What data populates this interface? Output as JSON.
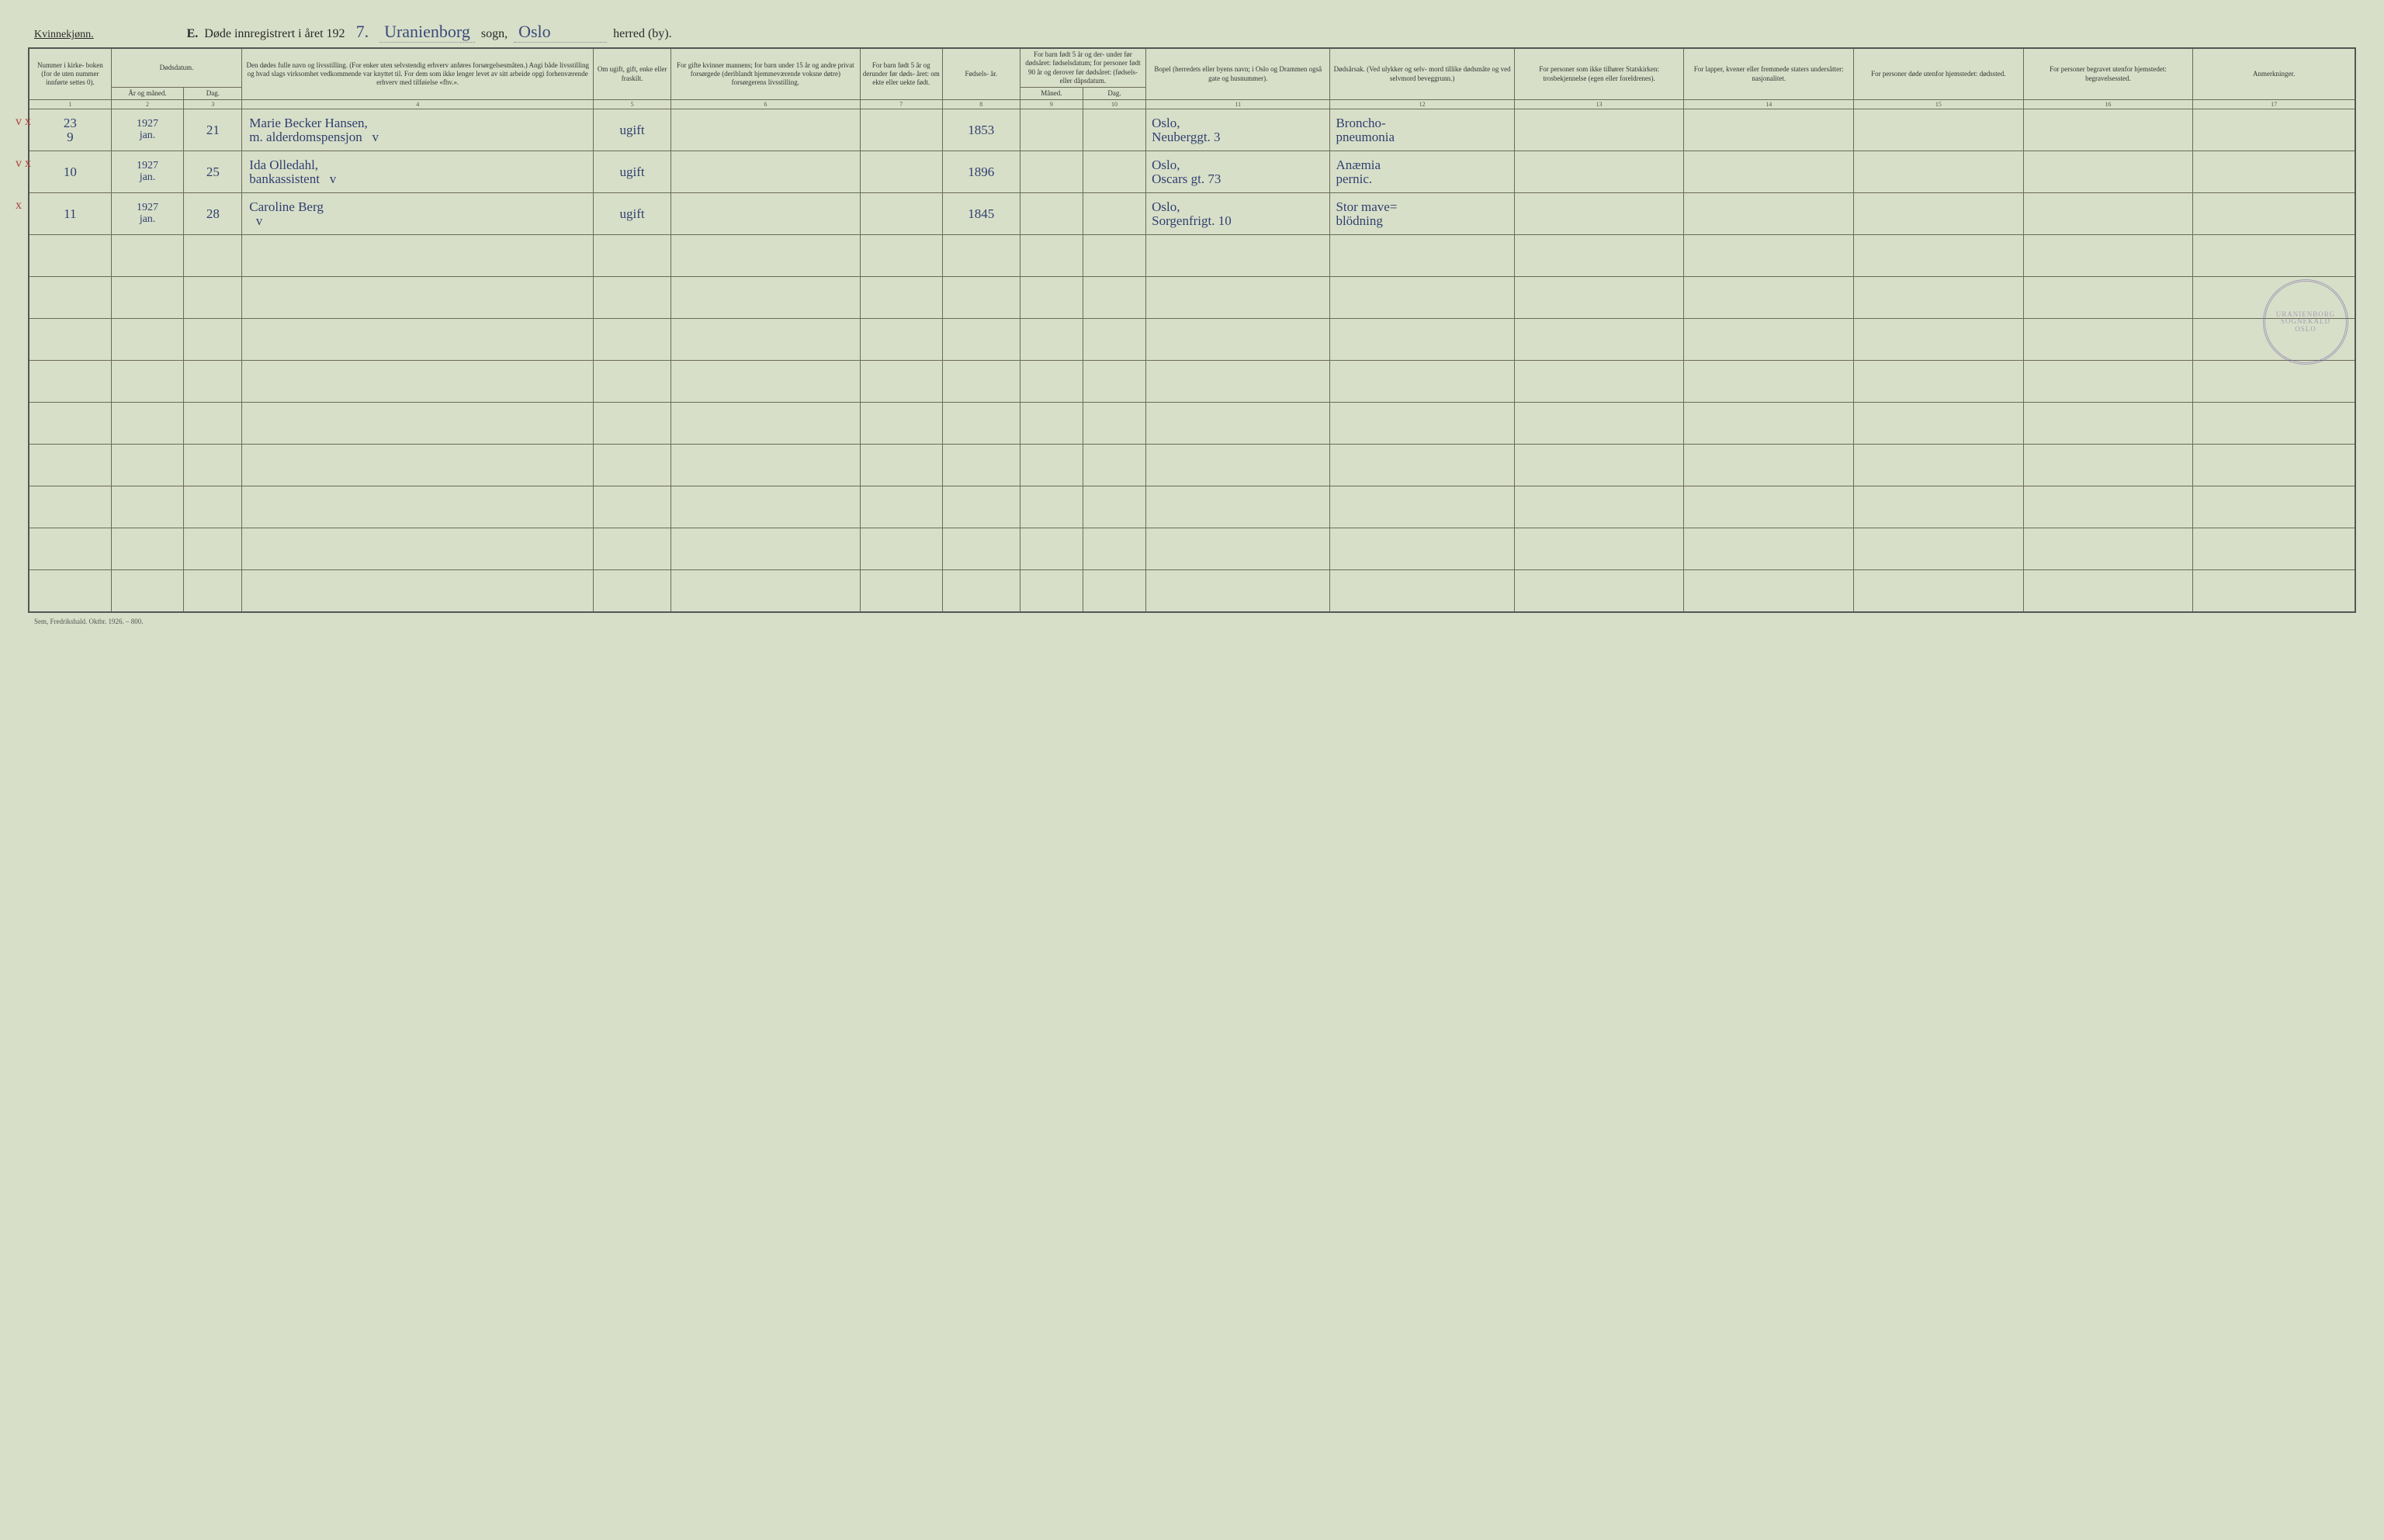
{
  "header": {
    "gender": "Kvinnekjønn.",
    "section_letter": "E.",
    "title_line_1": "Døde innregistrert i året 192",
    "year_suffix": "7.",
    "sogn_value": "Uranienborg",
    "sogn_label": "sogn,",
    "herred_value": "Oslo",
    "herred_label": "herred (by)."
  },
  "columns": {
    "c1": "Nummer i kirke- boken (for de uten nummer innførte settes 0).",
    "c2_group": "Dødsdatum.",
    "c2": "År og måned.",
    "c3": "Dag.",
    "c4": "Den dødes fulle navn og livsstilling. (For enker uten selvstendig erhverv anføres forsørgelsesmåten.) Angi både livsstilling og hvad slags virksomhet vedkommende var knyttet til. For dem som ikke lenger levet av sitt arbeide opgi forhenværende erhverv med tilføielse «fhv.».",
    "c5": "Om ugift, gift, enke eller fraskilt.",
    "c6": "For gifte kvinner mannens; for barn under 15 år og andre privat forsørgede (deriblandt hjemmeværende voksne døtre) forsørgerens livsstilling.",
    "c7": "For barn født 5 år og derunder før døds- året: om ekte eller uekte født.",
    "c8": "Fødsels- år.",
    "c9_group": "For barn født 5 år og der- under før dødsåret: fødselsdatum; for personer født 90 år og derover før dødsåret: (fødsels- eller dåpsdatum.",
    "c9": "Måned.",
    "c10": "Dag.",
    "c11": "Bopel (herredets eller byens navn; i Oslo og Drammen også gate og husnummer).",
    "c12": "Dødsårsak. (Ved ulykker og selv- mord tillike dødsmåte og ved selvmord beveggrunn.)",
    "c13": "For personer som ikke tilhører Statskirken: trosbekjennelse (egen eller foreldrenes).",
    "c14": "For lapper, kvener eller fremmede staters undersåtter: nasjonalitet.",
    "c15": "For personer døde utenfor hjemstedet: dødssted.",
    "c16": "For personer begravet utenfor hjemstedet: begravelsessted.",
    "c17": "Anmerkninger."
  },
  "colnums": [
    "1",
    "2",
    "3",
    "4",
    "5",
    "6",
    "7",
    "8",
    "9",
    "10",
    "11",
    "12",
    "13",
    "14",
    "15",
    "16",
    "17"
  ],
  "rows": [
    {
      "margin_marks": "v x",
      "num_a": "23",
      "num_b": "9",
      "year": "1927",
      "month": "jan.",
      "day": "21",
      "name_l1": "Marie Becker Hansen,",
      "name_l2": "m. alderdomspensjon",
      "name_mark": "v",
      "status": "ugift",
      "birth_year": "1853",
      "residence_l1": "Oslo,",
      "residence_l2": "Neuberggt. 3",
      "cause_l1": "Broncho-",
      "cause_l2": "pneumonia"
    },
    {
      "margin_marks": "v x",
      "num_a": "10",
      "year": "1927",
      "month": "jan.",
      "day": "25",
      "name_l1": "Ida Olledahl,",
      "name_l2": "bankassistent",
      "name_mark": "v",
      "status": "ugift",
      "birth_year": "1896",
      "residence_l1": "Oslo,",
      "residence_l2": "Oscars gt. 73",
      "cause_l1": "Anæmia",
      "cause_l2": "pernic."
    },
    {
      "margin_marks": "x",
      "num_a": "11",
      "year": "1927",
      "month": "jan.",
      "day": "28",
      "name_l1": "Caroline Berg",
      "name_l2": "",
      "name_mark": "v",
      "status": "ugift",
      "birth_year": "1845",
      "residence_l1": "Oslo,",
      "residence_l2": "Sorgenfrigt. 10",
      "cause_l1": "Stor mave=",
      "cause_l2": "blödning"
    }
  ],
  "blank_row_count": 9,
  "stamp": {
    "top": "URANIENBORG SOGNEKALD",
    "bottom": "OSLO"
  },
  "footer": "Sem, Fredrikshald. Oktbr. 1926. – 800."
}
